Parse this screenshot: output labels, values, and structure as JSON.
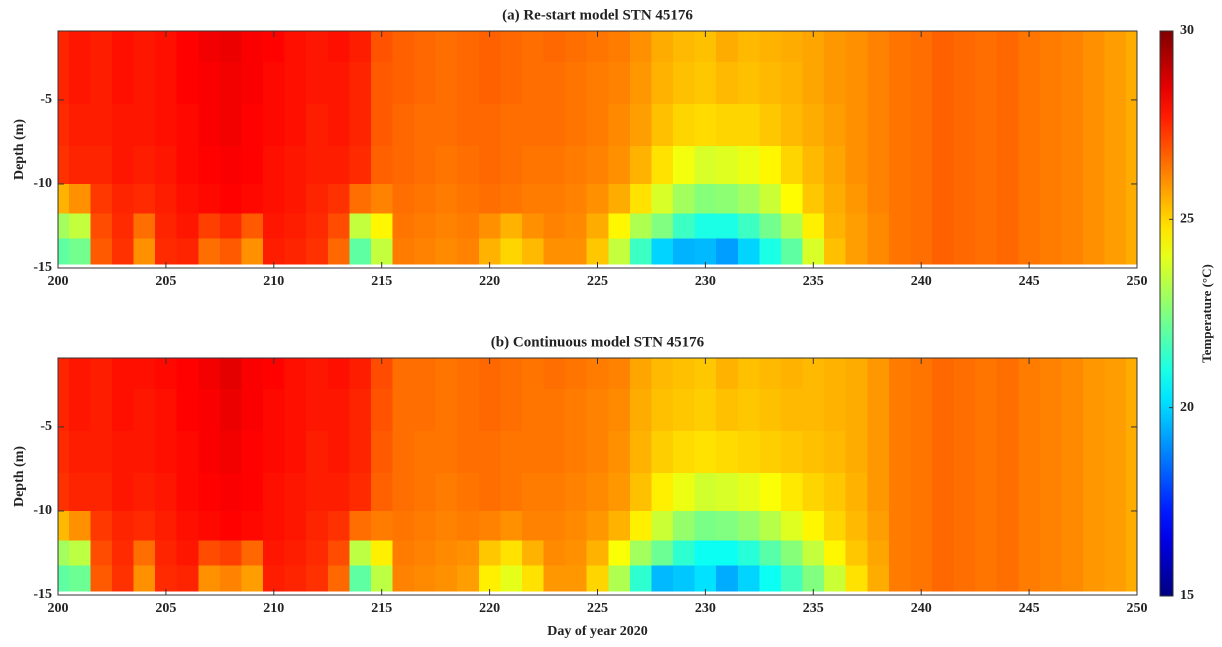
{
  "chart_data": [
    {
      "type": "heatmap",
      "title": "(a) Re-start model STN 45176",
      "ylabel": "Depth (m)",
      "x": [
        200,
        201,
        202,
        203,
        204,
        205,
        206,
        207,
        208,
        209,
        210,
        211,
        212,
        213,
        214,
        215,
        216,
        217,
        218,
        219,
        220,
        221,
        222,
        223,
        224,
        225,
        226,
        227,
        228,
        229,
        230,
        231,
        232,
        233,
        234,
        235,
        236,
        237,
        238,
        239,
        240,
        241,
        242,
        243,
        244,
        245,
        246,
        247,
        248,
        249,
        250
      ],
      "y": [
        -1.5,
        -4,
        -6.5,
        -9,
        -11,
        -12.5,
        -14
      ],
      "z": [
        [
          27.6,
          27.8,
          27.7,
          27.9,
          27.8,
          27.9,
          28.1,
          28.3,
          28.4,
          28.2,
          28.1,
          27.9,
          27.8,
          27.9,
          27.7,
          26.9,
          26.7,
          26.6,
          26.5,
          26.6,
          26.7,
          26.6,
          26.5,
          26.6,
          26.5,
          26.4,
          26.3,
          26.0,
          25.6,
          25.4,
          25.3,
          25.6,
          25.4,
          25.5,
          25.6,
          25.7,
          25.9,
          26.0,
          26.2,
          26.4,
          26.5,
          26.7,
          26.6,
          26.5,
          26.6,
          26.4,
          26.3,
          26.2,
          26.0,
          25.8,
          25.6
        ],
        [
          27.6,
          27.8,
          27.7,
          27.9,
          27.8,
          27.9,
          28.1,
          28.2,
          28.3,
          28.2,
          28.0,
          27.9,
          27.8,
          27.8,
          27.6,
          26.8,
          26.7,
          26.6,
          26.5,
          26.6,
          26.7,
          26.6,
          26.5,
          26.5,
          26.4,
          26.3,
          26.2,
          25.9,
          25.5,
          25.3,
          25.2,
          25.4,
          25.3,
          25.4,
          25.5,
          25.7,
          25.9,
          26.0,
          26.2,
          26.4,
          26.5,
          26.7,
          26.6,
          26.5,
          26.6,
          26.4,
          26.3,
          26.2,
          26.0,
          25.8,
          25.6
        ],
        [
          27.5,
          27.7,
          27.7,
          27.8,
          27.8,
          27.9,
          28.0,
          28.2,
          28.3,
          28.1,
          28.0,
          27.9,
          27.7,
          27.8,
          27.6,
          26.8,
          26.6,
          26.5,
          26.5,
          26.6,
          26.6,
          26.5,
          26.5,
          26.5,
          26.4,
          26.3,
          26.1,
          25.8,
          25.3,
          25.0,
          24.9,
          25.0,
          25.0,
          25.2,
          25.4,
          25.6,
          25.8,
          26.0,
          26.2,
          26.4,
          26.5,
          26.7,
          26.6,
          26.5,
          26.6,
          26.4,
          26.3,
          26.2,
          26.0,
          25.8,
          25.6
        ],
        [
          27.4,
          27.6,
          27.6,
          27.8,
          27.7,
          27.8,
          28.0,
          28.1,
          28.2,
          28.1,
          27.9,
          27.8,
          27.7,
          27.7,
          27.5,
          26.7,
          26.6,
          26.5,
          26.4,
          26.5,
          26.6,
          26.5,
          26.4,
          26.4,
          26.3,
          26.2,
          26.0,
          25.5,
          24.8,
          24.2,
          23.8,
          23.9,
          24.1,
          24.5,
          25.0,
          25.4,
          25.7,
          26.0,
          26.2,
          26.4,
          26.5,
          26.7,
          26.6,
          26.5,
          26.6,
          26.4,
          26.3,
          26.2,
          26.0,
          25.8,
          25.6
        ],
        [
          25.5,
          26.0,
          27.3,
          27.6,
          27.5,
          27.7,
          27.9,
          28.0,
          28.1,
          28.0,
          27.9,
          27.8,
          27.6,
          27.4,
          26.5,
          26.2,
          26.5,
          26.4,
          26.3,
          26.4,
          26.5,
          26.4,
          26.3,
          26.3,
          26.2,
          26.0,
          25.6,
          24.8,
          23.8,
          23.0,
          22.6,
          22.7,
          23.0,
          23.6,
          24.4,
          25.2,
          25.6,
          25.9,
          26.2,
          26.4,
          26.5,
          26.7,
          26.6,
          26.5,
          26.6,
          26.4,
          26.3,
          26.2,
          26.0,
          25.8,
          25.6
        ],
        [
          23.0,
          23.5,
          27.0,
          27.5,
          26.5,
          27.6,
          27.8,
          27.2,
          27.5,
          26.8,
          27.8,
          27.7,
          27.5,
          27.0,
          23.5,
          24.5,
          26.4,
          26.3,
          26.2,
          26.3,
          26.0,
          25.5,
          26.0,
          26.2,
          26.1,
          25.6,
          24.5,
          23.2,
          22.5,
          21.5,
          21.0,
          21.0,
          21.5,
          22.3,
          23.2,
          24.6,
          25.5,
          25.8,
          26.1,
          26.4,
          26.5,
          26.7,
          26.6,
          26.5,
          26.6,
          26.4,
          26.3,
          26.2,
          26.0,
          25.8,
          25.6
        ],
        [
          22.0,
          22.3,
          26.8,
          27.4,
          26.0,
          27.5,
          27.6,
          26.5,
          26.8,
          26.0,
          27.7,
          27.6,
          27.4,
          26.6,
          22.0,
          23.5,
          26.3,
          26.2,
          26.1,
          26.2,
          25.5,
          25.0,
          25.4,
          26.0,
          26.0,
          25.2,
          23.5,
          21.5,
          20.0,
          19.5,
          19.6,
          19.2,
          20.0,
          21.0,
          22.0,
          23.8,
          25.3,
          25.8,
          26.1,
          26.4,
          26.5,
          26.7,
          26.6,
          26.5,
          26.6,
          26.4,
          26.3,
          26.2,
          26.0,
          25.8,
          25.6
        ]
      ],
      "xlim": [
        200,
        250
      ],
      "xticks": [
        200,
        205,
        210,
        215,
        220,
        225,
        230,
        235,
        240,
        245,
        250
      ],
      "ylim": [
        -15,
        -0.9
      ],
      "yticks": [
        -15,
        -10,
        -5
      ]
    },
    {
      "type": "heatmap",
      "title": "(b) Continuous model STN 45176",
      "ylabel": "Depth (m)",
      "xlabel": "Day of year 2020",
      "x": [
        200,
        201,
        202,
        203,
        204,
        205,
        206,
        207,
        208,
        209,
        210,
        211,
        212,
        213,
        214,
        215,
        216,
        217,
        218,
        219,
        220,
        221,
        222,
        223,
        224,
        225,
        226,
        227,
        228,
        229,
        230,
        231,
        232,
        233,
        234,
        235,
        236,
        237,
        238,
        239,
        240,
        241,
        242,
        243,
        244,
        245,
        246,
        247,
        248,
        249,
        250
      ],
      "y": [
        -1.5,
        -4,
        -6.5,
        -9,
        -11,
        -12.5,
        -14
      ],
      "z": [
        [
          27.6,
          27.8,
          27.7,
          27.9,
          27.9,
          28.0,
          28.1,
          28.3,
          28.5,
          28.2,
          28.1,
          27.9,
          27.8,
          27.9,
          27.7,
          27.0,
          26.5,
          26.5,
          26.4,
          26.5,
          26.6,
          26.5,
          26.4,
          26.5,
          26.4,
          26.3,
          26.2,
          25.7,
          25.4,
          25.3,
          25.2,
          25.5,
          25.3,
          25.4,
          25.5,
          25.4,
          25.5,
          25.6,
          25.9,
          26.3,
          26.4,
          26.6,
          26.5,
          26.4,
          26.5,
          26.3,
          26.2,
          26.1,
          25.9,
          25.8,
          25.6
        ],
        [
          27.6,
          27.8,
          27.7,
          27.9,
          27.8,
          27.9,
          28.1,
          28.2,
          28.4,
          28.2,
          28.0,
          27.9,
          27.8,
          27.8,
          27.6,
          26.9,
          26.5,
          26.5,
          26.4,
          26.5,
          26.6,
          26.5,
          26.4,
          26.4,
          26.3,
          26.2,
          26.1,
          25.6,
          25.3,
          25.2,
          25.1,
          25.3,
          25.2,
          25.3,
          25.4,
          25.4,
          25.5,
          25.6,
          25.9,
          26.3,
          26.4,
          26.6,
          26.5,
          26.4,
          26.5,
          26.3,
          26.2,
          26.1,
          25.9,
          25.8,
          25.6
        ],
        [
          27.5,
          27.7,
          27.7,
          27.8,
          27.8,
          27.9,
          28.0,
          28.2,
          28.3,
          28.1,
          28.0,
          27.9,
          27.7,
          27.8,
          27.6,
          26.8,
          26.5,
          26.4,
          26.4,
          26.5,
          26.5,
          26.4,
          26.4,
          26.4,
          26.3,
          26.2,
          26.0,
          25.5,
          25.1,
          24.9,
          24.8,
          24.9,
          25.0,
          25.1,
          25.2,
          25.3,
          25.4,
          25.6,
          25.9,
          26.3,
          26.4,
          26.6,
          26.5,
          26.4,
          26.5,
          26.3,
          26.2,
          26.1,
          25.9,
          25.8,
          25.6
        ],
        [
          27.4,
          27.6,
          27.6,
          27.8,
          27.7,
          27.8,
          28.0,
          28.1,
          28.2,
          28.1,
          27.9,
          27.8,
          27.7,
          27.7,
          27.5,
          26.7,
          26.5,
          26.4,
          26.3,
          26.4,
          26.5,
          26.4,
          26.3,
          26.3,
          26.2,
          26.1,
          25.9,
          25.3,
          24.6,
          24.1,
          23.7,
          23.8,
          24.0,
          24.3,
          24.7,
          25.0,
          25.2,
          25.5,
          25.9,
          26.3,
          26.4,
          26.6,
          26.5,
          26.4,
          26.5,
          26.3,
          26.2,
          26.1,
          25.9,
          25.8,
          25.6
        ],
        [
          25.4,
          26.0,
          27.3,
          27.6,
          27.5,
          27.7,
          27.9,
          28.0,
          28.1,
          28.0,
          27.9,
          27.8,
          27.6,
          27.4,
          26.5,
          26.3,
          26.4,
          26.3,
          26.2,
          26.3,
          26.2,
          26.0,
          26.2,
          26.2,
          26.1,
          25.9,
          25.5,
          24.6,
          23.6,
          22.8,
          22.4,
          22.5,
          22.8,
          23.3,
          23.9,
          24.5,
          25.0,
          25.4,
          25.8,
          26.3,
          26.4,
          26.6,
          26.5,
          26.4,
          26.5,
          26.3,
          26.2,
          26.1,
          25.9,
          25.8,
          25.6
        ],
        [
          23.0,
          23.4,
          27.0,
          27.5,
          26.5,
          27.6,
          27.8,
          27.0,
          27.2,
          26.6,
          27.8,
          27.7,
          27.5,
          27.0,
          23.4,
          24.6,
          26.3,
          26.2,
          26.1,
          26.0,
          25.2,
          24.8,
          25.5,
          26.1,
          26.0,
          25.5,
          24.3,
          23.0,
          22.2,
          21.3,
          20.8,
          20.8,
          21.2,
          21.9,
          22.6,
          23.5,
          24.5,
          25.2,
          25.7,
          26.3,
          26.4,
          26.6,
          26.5,
          26.4,
          26.5,
          26.3,
          26.2,
          26.1,
          25.9,
          25.8,
          25.6
        ],
        [
          22.0,
          22.2,
          26.8,
          27.4,
          26.0,
          27.5,
          27.6,
          26.0,
          26.2,
          25.8,
          27.7,
          27.6,
          27.4,
          26.6,
          22.0,
          23.4,
          26.2,
          26.1,
          26.0,
          25.8,
          24.6,
          24.0,
          24.8,
          25.9,
          25.9,
          25.0,
          23.2,
          21.3,
          19.6,
          19.8,
          20.2,
          19.4,
          20.0,
          20.8,
          21.6,
          22.5,
          23.6,
          24.8,
          25.6,
          26.3,
          26.4,
          26.6,
          26.5,
          26.4,
          26.5,
          26.3,
          26.2,
          26.1,
          25.9,
          25.8,
          25.6
        ]
      ],
      "xlim": [
        200,
        250
      ],
      "xticks": [
        200,
        205,
        210,
        215,
        220,
        225,
        230,
        235,
        240,
        245,
        250
      ],
      "ylim": [
        -15,
        -0.9
      ],
      "yticks": [
        -15,
        -10,
        -5
      ]
    }
  ],
  "colorbar": {
    "label": "Temperature (°C)",
    "colormap": "jet",
    "clim": [
      15,
      30
    ],
    "ticks": [
      15,
      20,
      25,
      30
    ]
  }
}
